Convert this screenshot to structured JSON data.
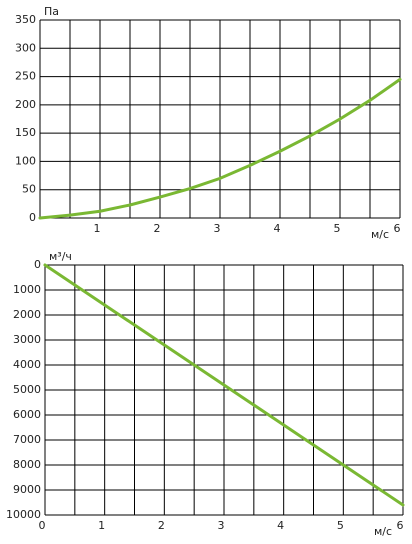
{
  "chart_data": [
    {
      "type": "line",
      "ylabel": "Па",
      "xlabel": "м/с",
      "x": [
        0,
        0.5,
        1,
        1.5,
        2,
        2.5,
        3,
        3.5,
        4,
        4.5,
        5,
        5.5,
        6
      ],
      "series": [
        {
          "color": "#7ab833",
          "values": [
            0,
            5,
            12,
            23,
            37,
            52,
            70,
            93,
            118,
            145,
            175,
            208,
            245
          ]
        }
      ],
      "xlim": [
        0,
        6
      ],
      "ylim": [
        0,
        350
      ],
      "xticks": [
        1,
        2,
        3,
        4,
        5,
        6
      ],
      "xgrid": [
        0.5,
        1,
        1.5,
        2,
        2.5,
        3,
        3.5,
        4,
        4.5,
        5,
        5.5,
        6
      ],
      "yticks": [
        0,
        50,
        100,
        150,
        200,
        250,
        300,
        350
      ],
      "grid": true
    },
    {
      "type": "line",
      "ylabel": "м³/ч",
      "xlabel": "м/с",
      "x": [
        0,
        6
      ],
      "series": [
        {
          "color": "#7ab833",
          "values": [
            0,
            9600
          ]
        }
      ],
      "xlim": [
        0,
        6
      ],
      "ylim": [
        10000,
        0
      ],
      "xticks": [
        0,
        1,
        2,
        3,
        4,
        5,
        6
      ],
      "xgrid": [
        0.5,
        1,
        1.5,
        2,
        2.5,
        3,
        3.5,
        4,
        4.5,
        5,
        5.5,
        6
      ],
      "yticks": [
        0,
        1000,
        2000,
        3000,
        4000,
        5000,
        6000,
        7000,
        8000,
        9000,
        10000
      ],
      "grid": true
    }
  ]
}
